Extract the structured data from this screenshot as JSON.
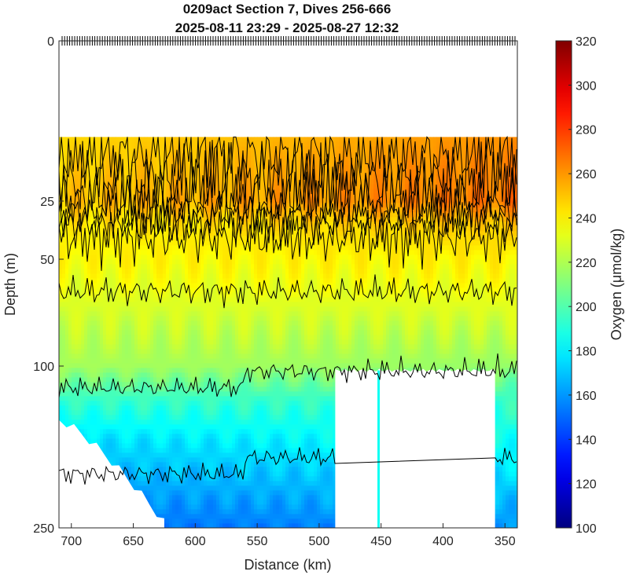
{
  "chart_data": {
    "type": "heatmap",
    "title": "0209act Section 7, Dives 256-666",
    "subtitle": "2025-08-11 23:29 - 2025-08-27 12:32",
    "xlabel": "Distance (km)",
    "ylabel": "Depth (m)",
    "colorbar_label": "Oxygen (μmol/kg)",
    "xlim": [
      710,
      340
    ],
    "x_ticks": [
      700,
      650,
      600,
      550,
      500,
      450,
      400,
      350
    ],
    "x_tick_labels": [
      "700",
      "650",
      "600",
      "550",
      "500",
      "450",
      "400",
      "350"
    ],
    "y_ticks": [
      0,
      25,
      50,
      100,
      250
    ],
    "y_tick_labels": [
      "0",
      "25",
      "50",
      "100",
      "250"
    ],
    "ylim": [
      0,
      250
    ],
    "y_scale": "nonlinear (compressed with depth)",
    "clim": [
      100,
      320
    ],
    "colorbar_ticks": [
      100,
      120,
      140,
      160,
      180,
      200,
      220,
      240,
      260,
      280,
      300,
      320
    ],
    "colorbar_tick_labels": [
      "100",
      "120",
      "140",
      "160",
      "180",
      "200",
      "220",
      "240",
      "260",
      "280",
      "300",
      "320"
    ],
    "colormap": "jet",
    "surface_gap_depth_m": 15,
    "contour_levels": [
      200,
      220,
      240,
      250,
      255,
      260,
      265,
      270
    ],
    "oxygen_by_depth_m": [
      {
        "depth": 15,
        "west": 245,
        "east": 262
      },
      {
        "depth": 25,
        "west": 250,
        "east": 268
      },
      {
        "depth": 35,
        "west": 242,
        "east": 250
      },
      {
        "depth": 50,
        "west": 238,
        "east": 240
      },
      {
        "depth": 70,
        "west": 230,
        "east": 232
      },
      {
        "depth": 100,
        "west": 218,
        "east": 215
      },
      {
        "depth": 130,
        "west": 195,
        "east": 195
      },
      {
        "depth": 170,
        "west": 175,
        "east": 185
      },
      {
        "depth": 250,
        "west": 150,
        "east": 160
      }
    ],
    "data_gaps": [
      {
        "from_km": 487,
        "to_km": 358,
        "below_depth_m": 104
      },
      {
        "from_km": 710,
        "to_km": 625,
        "below_depth_m": 150
      }
    ]
  }
}
